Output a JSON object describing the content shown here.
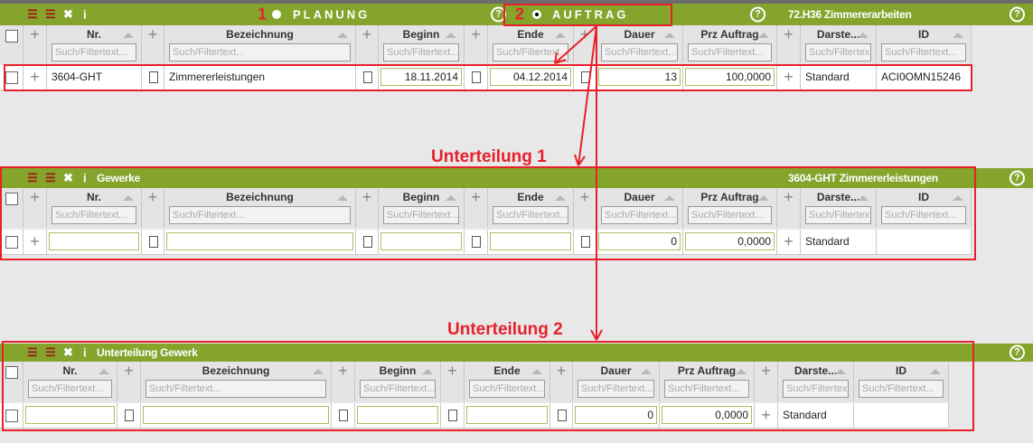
{
  "panels": [
    {
      "bar": {
        "planung_num": "1",
        "planung": "PLANUNG",
        "auftrag_num": "2",
        "auftrag": "AUFTRAG",
        "title": "72.H36 Zimmererarbeiten"
      },
      "columns": [
        "",
        "+",
        "Nr.",
        "+",
        "Bezeichnung",
        "+",
        "Beginn",
        "+",
        "Ende",
        "+",
        "Dauer",
        "Prz Auftrag",
        "+",
        "Darste...",
        "ID"
      ],
      "filter_placeholder": "Such/Filtertext...",
      "filter_placeholder_short": "Such/Filtertex",
      "row": {
        "nr": "3604-GHT",
        "bezeichnung": "Zimmererleistungen",
        "beginn": "18.11.2014",
        "ende": "04.12.2014",
        "dauer": "13",
        "prz": "100,0000",
        "darst": "Standard",
        "id": "ACI0OMN15246"
      }
    },
    {
      "bar": {
        "title_left": "Gewerke",
        "title": "3604-GHT Zimmererleistungen"
      },
      "columns": [
        "",
        "+",
        "Nr.",
        "+",
        "Bezeichnung",
        "+",
        "Beginn",
        "+",
        "Ende",
        "+",
        "Dauer",
        "Prz Auftrag",
        "+",
        "Darste...",
        "ID"
      ],
      "filter_placeholder": "Such/Filtertext...",
      "filter_placeholder_short": "Such/Filtertex",
      "row": {
        "nr": "",
        "bezeichnung": "",
        "beginn": "",
        "ende": "",
        "dauer": "0",
        "prz": "0,0000",
        "darst": "Standard",
        "id": ""
      }
    },
    {
      "bar": {
        "title_left": "Unterteilung Gewerk"
      },
      "columns": [
        "",
        "Nr.",
        "+",
        "Bezeichnung",
        "+",
        "Beginn",
        "+",
        "Ende",
        "+",
        "Dauer",
        "Prz Auftrag",
        "+",
        "Darste...",
        "ID"
      ],
      "filter_placeholder": "Such/Filtertext...",
      "filter_placeholder_short": "Such/Filtertex",
      "row": {
        "nr": "",
        "bezeichnung": "",
        "beginn": "",
        "ende": "",
        "dauer": "0",
        "prz": "0,0000",
        "darst": "Standard",
        "id": ""
      }
    }
  ],
  "annotations": {
    "unterteilung1": "Unterteilung 1",
    "unterteilung2": "Unterteilung 2"
  },
  "icons": [
    "collapse-icon",
    "expand-icon",
    "close-icon",
    "info-icon",
    "help-icon"
  ],
  "colors": {
    "bar": "#84a42c",
    "annotation": "#e8202a"
  }
}
